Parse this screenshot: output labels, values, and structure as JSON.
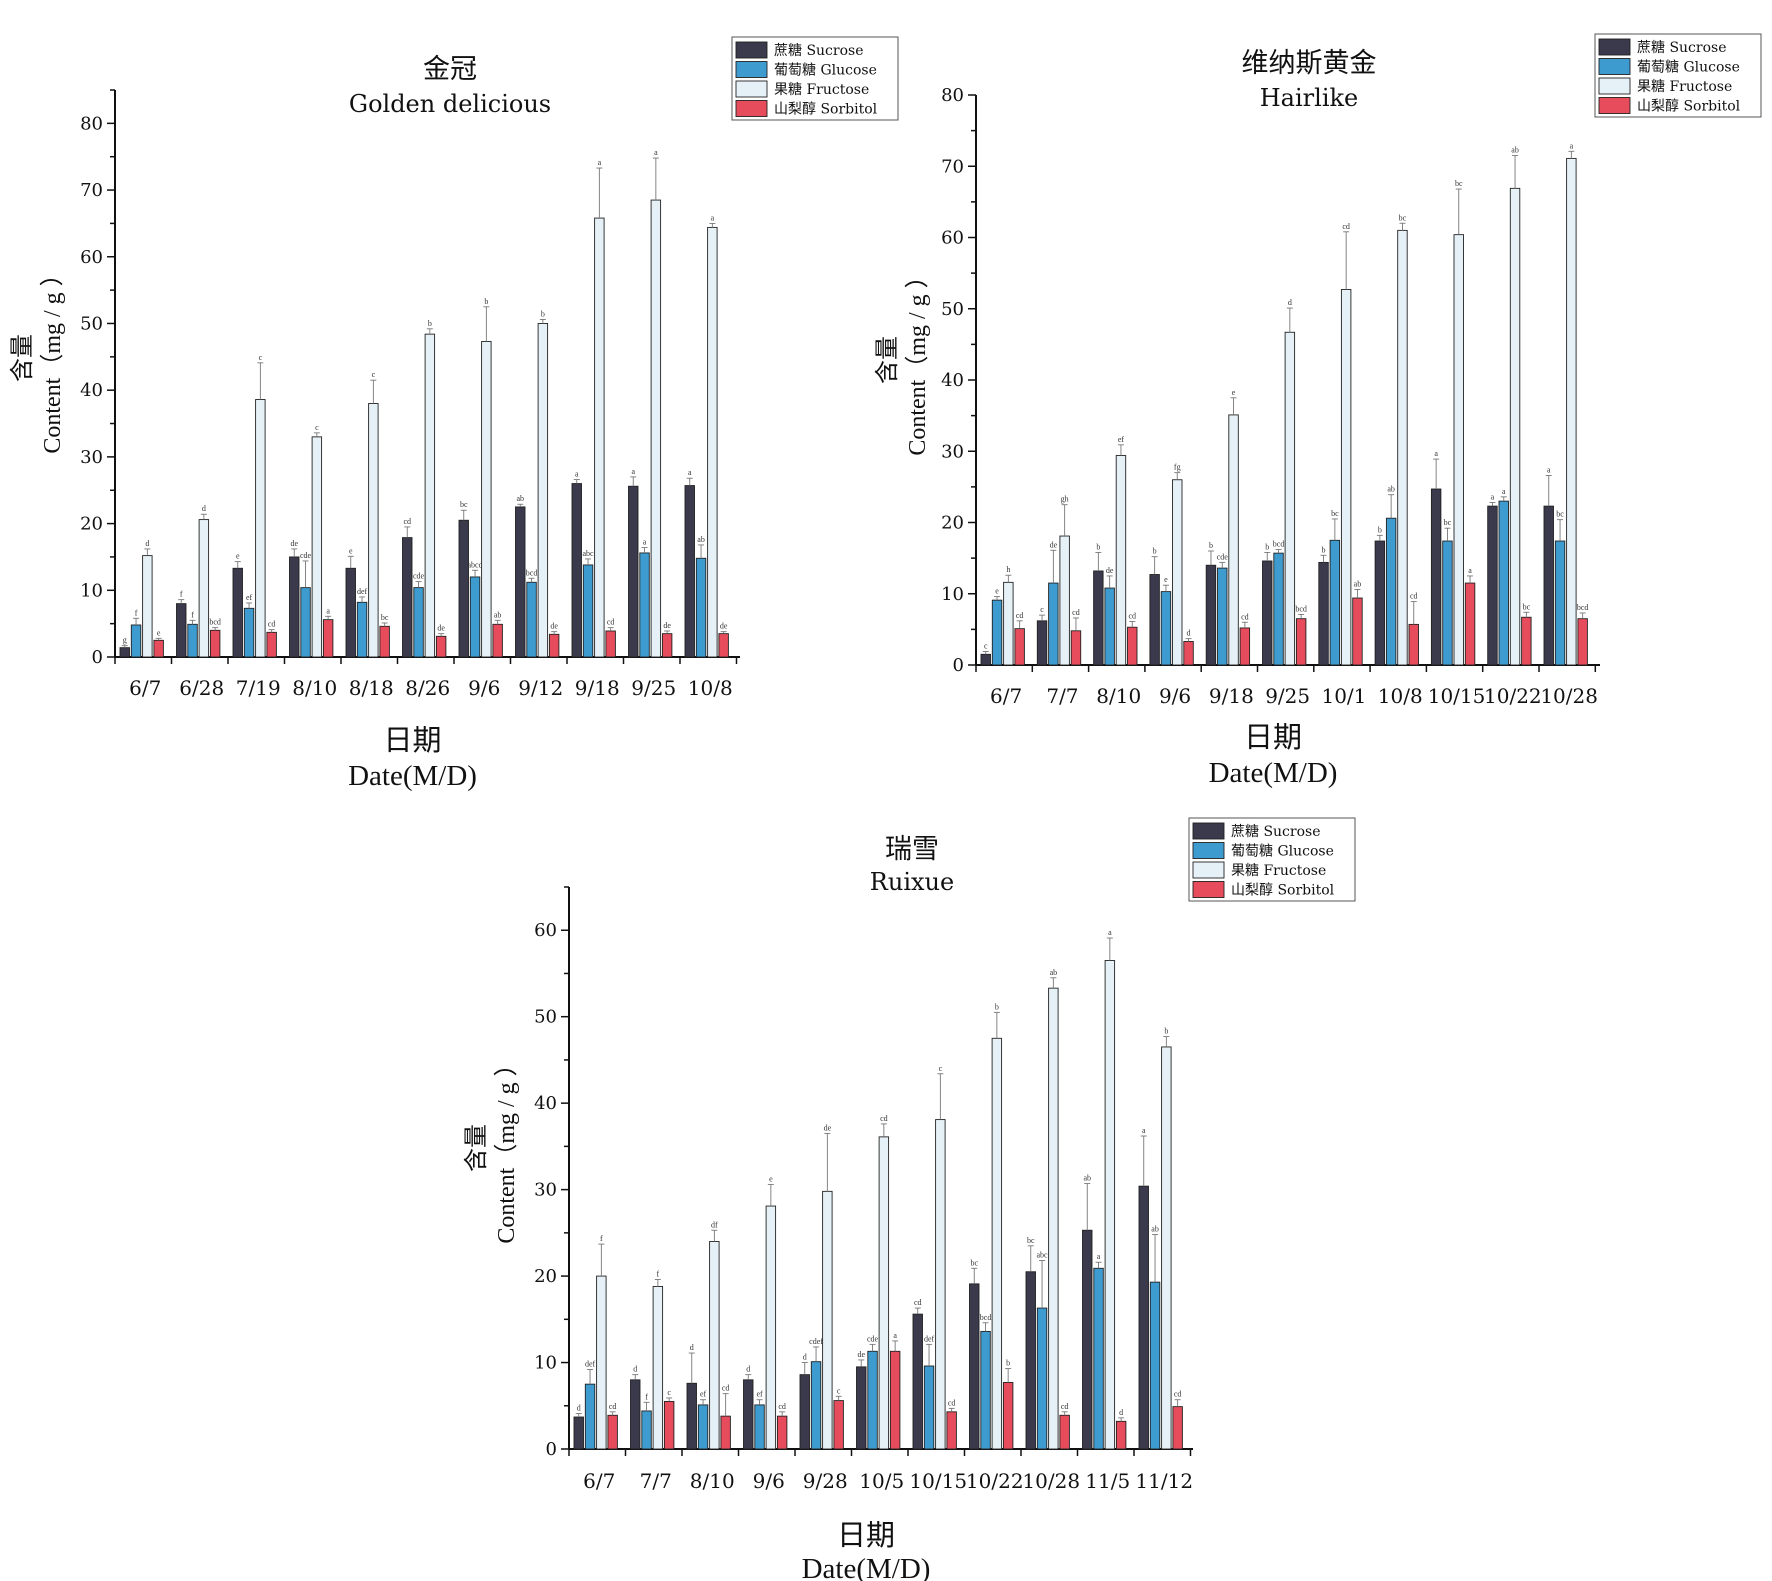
{
  "legend": {
    "items": [
      "蔗糖 Sucrose",
      "葡萄糖 Glucose",
      "果糖 Fructose",
      "山梨醇 Sorbitol"
    ]
  },
  "colors": {
    "sucrose": "#3a3a4c",
    "glucose": "#3d9bd0",
    "fructose": "#e6f1f7",
    "sorbitol": "#e64c5c",
    "axis": "#111111",
    "errorbar": "#777777"
  },
  "chart_data": [
    {
      "type": "bar",
      "title": "金冠",
      "subtitle": "Golden delicious",
      "xlabel": "日期",
      "xlabel_en": "Date(M/D)",
      "ylabel_cn": "含量",
      "ylabel": "Content（mg / g ）",
      "ylim": [
        0,
        85
      ],
      "yticks": [
        0,
        10,
        20,
        30,
        40,
        50,
        60,
        70,
        80
      ],
      "categories": [
        "6/7",
        "6/28",
        "7/19",
        "8/10",
        "8/18",
        "8/26",
        "9/6",
        "9/12",
        "9/18",
        "9/25",
        "10/8"
      ],
      "series": [
        {
          "name": "蔗糖 Sucrose",
          "values": [
            1.4,
            8.0,
            13.3,
            15.0,
            13.3,
            17.9,
            20.5,
            22.5,
            26.0,
            25.6,
            25.7
          ],
          "errors": [
            0.3,
            0.6,
            1.0,
            1.2,
            1.8,
            1.6,
            1.5,
            0.4,
            0.6,
            1.4,
            1.1
          ],
          "letters": [
            "g",
            "f",
            "e",
            "de",
            "e",
            "cd",
            "bc",
            "ab",
            "a",
            "a",
            "a"
          ]
        },
        {
          "name": "葡萄糖 Glucose",
          "values": [
            4.8,
            4.9,
            7.3,
            10.4,
            8.2,
            10.4,
            12.0,
            11.2,
            13.8,
            15.6,
            14.8
          ],
          "errors": [
            1.0,
            0.6,
            0.8,
            4.0,
            0.8,
            0.9,
            1.0,
            0.6,
            0.9,
            0.8,
            2.0
          ],
          "letters": [
            "f",
            "f",
            "ef",
            "cde",
            "def",
            "cde",
            "abcd",
            "bcd",
            "abc",
            "a",
            "ab"
          ]
        },
        {
          "name": "果糖 Fructose",
          "values": [
            15.2,
            20.6,
            38.6,
            33.0,
            38.0,
            48.4,
            47.3,
            50.0,
            65.8,
            68.5,
            64.4
          ],
          "errors": [
            1.0,
            0.8,
            5.5,
            0.6,
            3.5,
            0.8,
            5.2,
            0.6,
            7.5,
            6.3,
            0.6
          ],
          "letters": [
            "d",
            "d",
            "c",
            "c",
            "c",
            "b",
            "b",
            "b",
            "a",
            "a",
            "a"
          ]
        },
        {
          "name": "山梨醇 Sorbitol",
          "values": [
            2.5,
            4.0,
            3.7,
            5.6,
            4.6,
            3.1,
            4.9,
            3.4,
            3.9,
            3.5,
            3.5
          ],
          "errors": [
            0.3,
            0.4,
            0.4,
            0.5,
            0.5,
            0.4,
            0.6,
            0.4,
            0.5,
            0.4,
            0.3
          ],
          "letters": [
            "e",
            "bcd",
            "cd",
            "a",
            "bc",
            "de",
            "ab",
            "de",
            "cd",
            "de",
            "de"
          ]
        }
      ]
    },
    {
      "type": "bar",
      "title": "维纳斯黄金",
      "subtitle": "Hairlike",
      "xlabel": "日期",
      "xlabel_en": "Date(M/D)",
      "ylabel_cn": "含量",
      "ylabel": "Content（mg / g ）",
      "ylim": [
        0,
        80
      ],
      "yticks": [
        0,
        10,
        20,
        30,
        40,
        50,
        60,
        70,
        80
      ],
      "categories": [
        "6/7",
        "7/7",
        "8/10",
        "9/6",
        "9/18",
        "9/25",
        "10/1",
        "10/8",
        "10/15",
        "10/22",
        "10/28"
      ],
      "series": [
        {
          "name": "蔗糖 Sucrose",
          "values": [
            1.5,
            6.2,
            13.2,
            12.7,
            14.0,
            14.6,
            14.4,
            17.4,
            24.7,
            22.3,
            22.3
          ],
          "errors": [
            0.4,
            0.8,
            2.6,
            2.5,
            2.0,
            1.2,
            1.0,
            0.8,
            4.2,
            0.5,
            4.3
          ],
          "letters": [
            "c",
            "c",
            "b",
            "b",
            "b",
            "b",
            "b",
            "b",
            "a",
            "a",
            "a"
          ]
        },
        {
          "name": "葡萄糖 Glucose",
          "values": [
            9.1,
            11.5,
            10.8,
            10.3,
            13.6,
            15.7,
            17.5,
            20.6,
            17.4,
            23.0,
            17.4
          ],
          "errors": [
            0.5,
            4.6,
            1.7,
            0.9,
            0.8,
            0.5,
            3.0,
            3.3,
            1.8,
            0.6,
            3.0
          ],
          "letters": [
            "e",
            "de",
            "de",
            "e",
            "cde",
            "bcd",
            "bc",
            "ab",
            "bc",
            "a",
            "bc"
          ]
        },
        {
          "name": "果糖 Fructose",
          "values": [
            11.6,
            18.1,
            29.4,
            26.0,
            35.1,
            46.7,
            52.7,
            61.0,
            60.4,
            66.9,
            71.1
          ],
          "errors": [
            1.0,
            4.4,
            1.5,
            1.0,
            2.4,
            3.4,
            8.1,
            1.0,
            6.4,
            4.6,
            1.0
          ],
          "letters": [
            "h",
            "gh",
            "ef",
            "fg",
            "e",
            "d",
            "cd",
            "bc",
            "bc",
            "ab",
            "a"
          ]
        },
        {
          "name": "山梨醇 Sorbitol",
          "values": [
            5.1,
            4.8,
            5.3,
            3.3,
            5.2,
            6.5,
            9.4,
            5.7,
            11.5,
            6.7,
            6.5
          ],
          "errors": [
            1.1,
            1.8,
            0.8,
            0.4,
            0.8,
            0.6,
            1.2,
            3.2,
            1.0,
            0.7,
            0.8
          ],
          "letters": [
            "cd",
            "cd",
            "cd",
            "d",
            "cd",
            "bcd",
            "ab",
            "cd",
            "a",
            "bc",
            "bcd"
          ]
        }
      ]
    },
    {
      "type": "bar",
      "title": "瑞雪",
      "subtitle": "Ruixue",
      "xlabel": "日期",
      "xlabel_en": "Date(M/D)",
      "ylabel_cn": "含量",
      "ylabel": "Content（mg / g ）",
      "ylim": [
        0,
        65
      ],
      "yticks": [
        0,
        10,
        20,
        30,
        40,
        50,
        60
      ],
      "categories": [
        "6/7",
        "7/7",
        "8/10",
        "9/6",
        "9/28",
        "10/5",
        "10/15",
        "10/22",
        "10/28",
        "11/5",
        "11/12"
      ],
      "series": [
        {
          "name": "蔗糖 Sucrose",
          "values": [
            3.7,
            8.0,
            7.6,
            8.0,
            8.6,
            9.5,
            15.6,
            19.1,
            20.5,
            25.3,
            30.4
          ],
          "errors": [
            0.4,
            0.6,
            3.5,
            0.6,
            1.4,
            0.8,
            0.7,
            1.8,
            3.0,
            5.4,
            5.8
          ],
          "letters": [
            "d",
            "d",
            "d",
            "d",
            "d",
            "de",
            "cd",
            "bc",
            "bc",
            "ab",
            "a"
          ]
        },
        {
          "name": "葡萄糖 Glucose",
          "values": [
            7.5,
            4.4,
            5.1,
            5.1,
            10.1,
            11.3,
            9.6,
            13.6,
            16.3,
            20.9,
            19.3
          ],
          "errors": [
            1.7,
            1.0,
            0.6,
            0.6,
            1.7,
            0.8,
            2.5,
            1.0,
            5.5,
            0.7,
            5.5
          ],
          "letters": [
            "def",
            "f",
            "ef",
            "ef",
            "cdef",
            "cde",
            "def",
            "bcd",
            "abc",
            "a",
            "ab"
          ]
        },
        {
          "name": "果糖 Fructose",
          "values": [
            20.0,
            18.8,
            24.0,
            28.1,
            29.8,
            36.1,
            38.1,
            47.5,
            53.3,
            56.5,
            46.5
          ],
          "errors": [
            3.7,
            0.8,
            1.3,
            2.5,
            6.7,
            1.5,
            5.3,
            3.0,
            1.2,
            2.6,
            1.2
          ],
          "letters": [
            "f",
            "f",
            "df",
            "e",
            "de",
            "cd",
            "c",
            "b",
            "ab",
            "a",
            "b"
          ]
        },
        {
          "name": "山梨醇 Sorbitol",
          "values": [
            3.9,
            5.5,
            3.8,
            3.8,
            5.6,
            11.3,
            4.3,
            7.7,
            3.9,
            3.2,
            4.9
          ],
          "errors": [
            0.4,
            0.4,
            2.6,
            0.5,
            0.5,
            1.2,
            0.4,
            1.6,
            0.4,
            0.4,
            0.8
          ],
          "letters": [
            "cd",
            "c",
            "cd",
            "cd",
            "c",
            "a",
            "cd",
            "b",
            "cd",
            "d",
            "cd"
          ]
        }
      ]
    }
  ]
}
